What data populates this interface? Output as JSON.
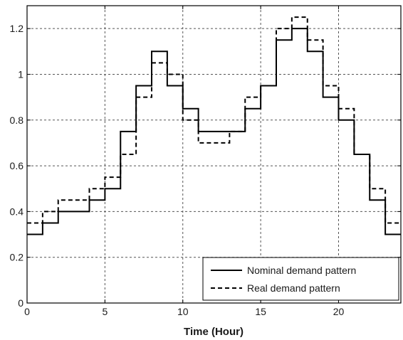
{
  "chart_data": {
    "type": "line",
    "step": "post",
    "xlabel": "Time (Hour)",
    "ylabel": "",
    "title": "",
    "xlim": [
      0,
      24
    ],
    "ylim": [
      0,
      1.3
    ],
    "xticks": [
      0,
      5,
      10,
      15,
      20
    ],
    "yticks": [
      0,
      0.2,
      0.4,
      0.6,
      0.8,
      1,
      1.2
    ],
    "x_tick_labels": [
      "0",
      "5",
      "10",
      "15",
      "20"
    ],
    "y_tick_labels": [
      "0",
      "0.2",
      "0.4",
      "0.6",
      "0.8",
      "1",
      "1.2"
    ],
    "grid": true,
    "legend_position": "bottom-right",
    "x": [
      0,
      1,
      2,
      3,
      4,
      5,
      6,
      7,
      8,
      9,
      10,
      11,
      12,
      13,
      14,
      15,
      16,
      17,
      18,
      19,
      20,
      21,
      22,
      23,
      24
    ],
    "series": [
      {
        "name": "Nominal demand pattern",
        "style": "solid",
        "color": "#000000",
        "values": [
          0.3,
          0.35,
          0.4,
          0.4,
          0.45,
          0.5,
          0.75,
          0.95,
          1.1,
          0.95,
          0.85,
          0.75,
          0.75,
          0.75,
          0.85,
          0.95,
          1.15,
          1.2,
          1.1,
          0.9,
          0.8,
          0.65,
          0.45,
          0.3,
          0.3
        ]
      },
      {
        "name": "Real demand pattern",
        "style": "dashed",
        "color": "#000000",
        "values": [
          0.35,
          0.4,
          0.45,
          0.45,
          0.5,
          0.55,
          0.65,
          0.9,
          1.05,
          1.0,
          0.8,
          0.7,
          0.7,
          0.75,
          0.9,
          0.95,
          1.2,
          1.25,
          1.15,
          0.95,
          0.85,
          0.65,
          0.5,
          0.35,
          0.35
        ]
      }
    ]
  }
}
